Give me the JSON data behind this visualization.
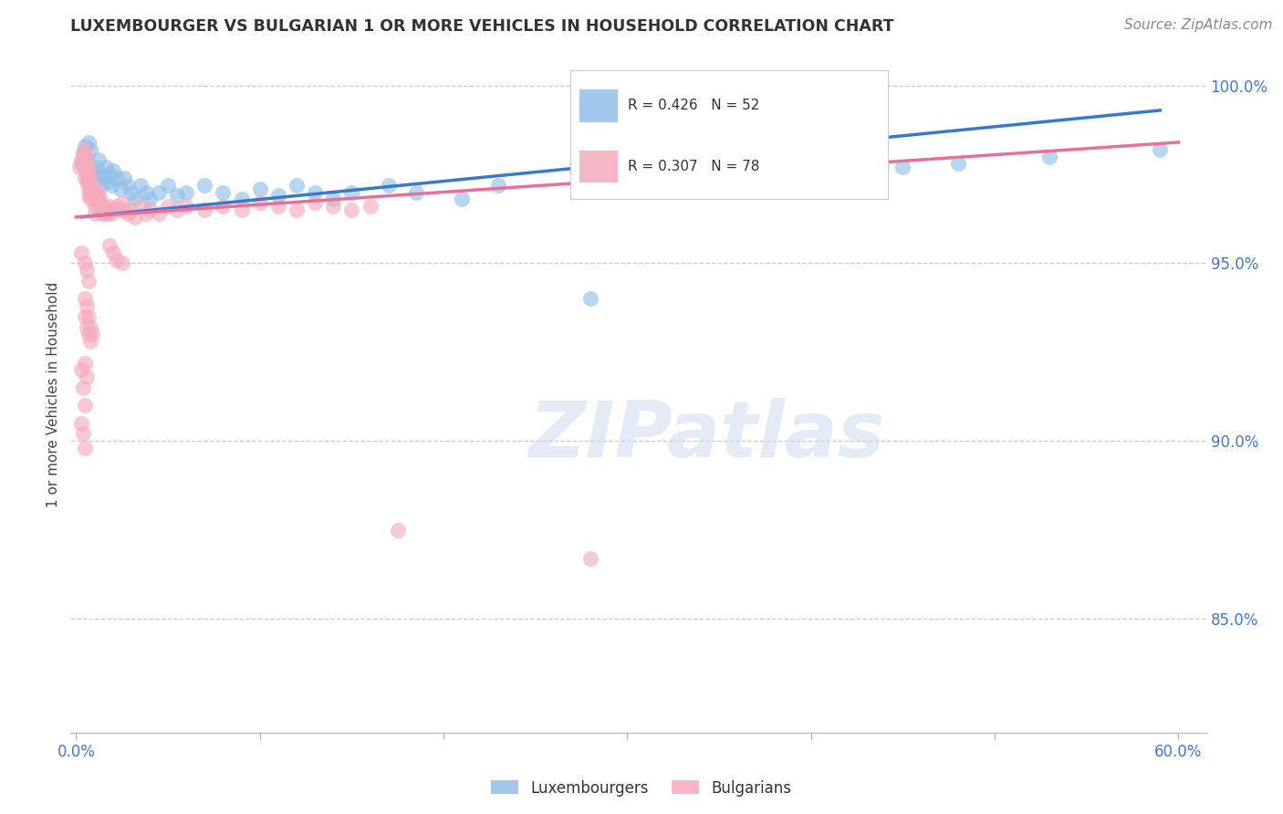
{
  "title": "LUXEMBOURGER VS BULGARIAN 1 OR MORE VEHICLES IN HOUSEHOLD CORRELATION CHART",
  "source": "Source: ZipAtlas.com",
  "ylabel": "1 or more Vehicles in Household",
  "legend_labels": [
    "Luxembourgers",
    "Bulgarians"
  ],
  "r_lux": 0.426,
  "n_lux": 52,
  "r_bul": 0.307,
  "n_bul": 78,
  "xlim": [
    -0.003,
    0.615
  ],
  "ylim": [
    0.818,
    1.008
  ],
  "xtick_positions": [
    0.0,
    0.1,
    0.2,
    0.3,
    0.4,
    0.5,
    0.6
  ],
  "xticklabels": [
    "0.0%",
    "",
    "",
    "",
    "",
    "",
    "60.0%"
  ],
  "ytick_positions": [
    0.85,
    0.9,
    0.95,
    1.0
  ],
  "yticklabels": [
    "85.0%",
    "90.0%",
    "95.0%",
    "100.0%"
  ],
  "color_lux": "#92C0E8",
  "color_bul": "#F5ABBE",
  "line_color_lux": "#3A78C9",
  "line_color_bul": "#E87098",
  "watermark_text": "ZIPatlas",
  "lux_x": [
    0.003,
    0.004,
    0.005,
    0.006,
    0.007,
    0.008,
    0.009,
    0.01,
    0.011,
    0.012,
    0.013,
    0.014,
    0.015,
    0.016,
    0.017,
    0.018,
    0.019,
    0.02,
    0.022,
    0.024,
    0.026,
    0.028,
    0.03,
    0.032,
    0.035,
    0.038,
    0.04,
    0.045,
    0.05,
    0.055,
    0.06,
    0.07,
    0.08,
    0.09,
    0.1,
    0.11,
    0.12,
    0.13,
    0.14,
    0.15,
    0.17,
    0.185,
    0.21,
    0.23,
    0.28,
    0.32,
    0.34,
    0.42,
    0.45,
    0.48,
    0.53,
    0.59
  ],
  "lux_y": [
    0.978,
    0.981,
    0.983,
    0.979,
    0.984,
    0.982,
    0.976,
    0.975,
    0.977,
    0.979,
    0.972,
    0.975,
    0.974,
    0.977,
    0.973,
    0.975,
    0.972,
    0.976,
    0.974,
    0.971,
    0.974,
    0.972,
    0.97,
    0.968,
    0.972,
    0.97,
    0.968,
    0.97,
    0.972,
    0.969,
    0.97,
    0.972,
    0.97,
    0.968,
    0.971,
    0.969,
    0.972,
    0.97,
    0.968,
    0.97,
    0.972,
    0.97,
    0.968,
    0.972,
    0.94,
    0.972,
    0.975,
    0.975,
    0.977,
    0.978,
    0.98,
    0.982
  ],
  "bul_x": [
    0.002,
    0.003,
    0.004,
    0.004,
    0.005,
    0.005,
    0.005,
    0.005,
    0.005,
    0.006,
    0.006,
    0.006,
    0.006,
    0.006,
    0.007,
    0.007,
    0.007,
    0.007,
    0.008,
    0.008,
    0.008,
    0.008,
    0.009,
    0.009,
    0.01,
    0.01,
    0.01,
    0.01,
    0.011,
    0.012,
    0.012,
    0.013,
    0.013,
    0.014,
    0.015,
    0.015,
    0.016,
    0.017,
    0.018,
    0.019,
    0.02,
    0.022,
    0.024,
    0.025,
    0.026,
    0.028,
    0.03,
    0.032,
    0.035,
    0.038,
    0.04,
    0.045,
    0.05,
    0.055,
    0.06,
    0.07,
    0.08,
    0.09,
    0.1,
    0.11,
    0.12,
    0.13,
    0.14,
    0.15,
    0.16,
    0.018,
    0.02,
    0.022,
    0.025,
    0.005,
    0.006,
    0.007,
    0.008,
    0.009,
    0.003,
    0.004,
    0.005,
    0.28
  ],
  "bul_y": [
    0.977,
    0.979,
    0.981,
    0.978,
    0.98,
    0.982,
    0.978,
    0.976,
    0.974,
    0.978,
    0.975,
    0.977,
    0.975,
    0.973,
    0.976,
    0.973,
    0.971,
    0.969,
    0.974,
    0.972,
    0.97,
    0.968,
    0.972,
    0.97,
    0.97,
    0.968,
    0.966,
    0.964,
    0.968,
    0.97,
    0.967,
    0.968,
    0.966,
    0.964,
    0.966,
    0.964,
    0.965,
    0.964,
    0.966,
    0.964,
    0.965,
    0.966,
    0.965,
    0.967,
    0.965,
    0.964,
    0.965,
    0.963,
    0.966,
    0.964,
    0.965,
    0.964,
    0.966,
    0.965,
    0.966,
    0.965,
    0.966,
    0.965,
    0.967,
    0.966,
    0.965,
    0.967,
    0.966,
    0.965,
    0.966,
    0.955,
    0.953,
    0.951,
    0.95,
    0.94,
    0.938,
    0.935,
    0.932,
    0.93,
    0.92,
    0.915,
    0.91,
    0.867
  ],
  "bul_outliers_x": [
    0.003,
    0.005,
    0.006,
    0.007,
    0.005,
    0.006,
    0.007,
    0.008,
    0.005,
    0.006,
    0.003,
    0.004,
    0.005,
    0.175
  ],
  "bul_outliers_y": [
    0.953,
    0.95,
    0.948,
    0.945,
    0.935,
    0.932,
    0.93,
    0.928,
    0.922,
    0.918,
    0.905,
    0.902,
    0.898,
    0.875
  ],
  "lux_line_x0": 0.003,
  "lux_line_x1": 0.59,
  "lux_line_y0": 0.963,
  "lux_line_y1": 0.993,
  "bul_line_x0": 0.0,
  "bul_line_x1": 0.6,
  "bul_line_y0": 0.963,
  "bul_line_y1": 0.984,
  "background_color": "#ffffff",
  "grid_color": "#cccccc"
}
